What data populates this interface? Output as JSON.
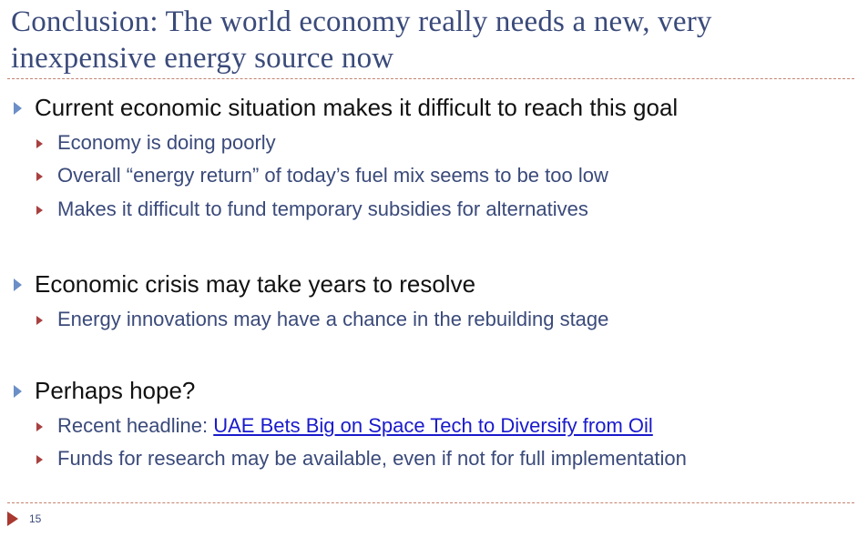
{
  "slide": {
    "title": "Conclusion: The world economy really needs a new, very inexpensive energy source now",
    "page_number": "15"
  },
  "bullets": [
    {
      "text": "Current economic situation makes it difficult to reach this goal",
      "subs": [
        "Economy is doing poorly",
        "Overall “energy return” of today’s fuel mix seems to be too low",
        "Makes it difficult to fund temporary subsidies for alternatives"
      ]
    },
    {
      "text": "Economic crisis may take years to resolve",
      "subs": [
        "Energy innovations may have a chance in the rebuilding stage"
      ]
    },
    {
      "text": "Perhaps hope?",
      "subs": [
        "Recent headline: ",
        "Funds for research may be available, even if not for full implementation"
      ],
      "headline_link": "UAE Bets Big on Space Tech to Diversify from Oil"
    }
  ],
  "colors": {
    "title": "#3a4a7a",
    "level1_text": "#111111",
    "level2_text": "#3a4a7a",
    "level1_bullet": "#6b8fc6",
    "level2_bullet": "#a84040",
    "link": "#1a1acc",
    "rule": "#c4836f"
  },
  "icons": {
    "level1_bullet": "triangle-right-blue",
    "level2_bullet": "triangle-right-red",
    "footer": "triangle-right-red"
  }
}
